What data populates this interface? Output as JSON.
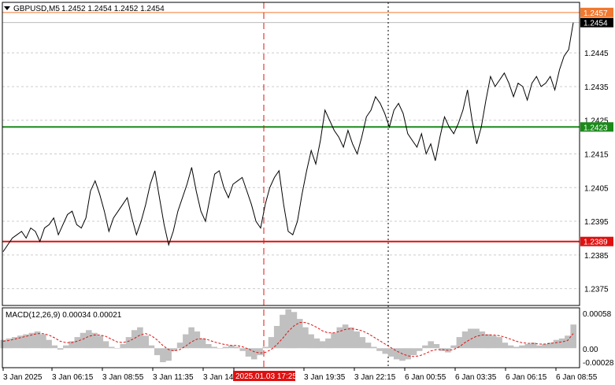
{
  "header": {
    "symbol": "GBPUSD,M5",
    "ohlc": "1.2452 1.2454 1.2452 1.2454"
  },
  "macd": {
    "label": "MACD(12,26,9) 0.00034 0.00021",
    "scale_labels": [
      "0.00058",
      "0.00",
      "-0.00028"
    ]
  },
  "price_levels": [
    {
      "label": "1.2457",
      "value": 1.2457,
      "color": "#f07830"
    },
    {
      "label": "1.2454",
      "value": 1.2454,
      "color": "#000000"
    },
    {
      "label": "1.2423",
      "value": 1.2423,
      "color": "#1a8a1a"
    },
    {
      "label": "1.2389",
      "value": 1.2389,
      "color": "#e01010"
    }
  ],
  "x_labels": [
    "3 Jan 2025",
    "3 Jan 06:15",
    "3 Jan 08:55",
    "3 Jan 11:35",
    "3 Jan 14:",
    "2025.01.03 17:25",
    "3 Jan 19:35",
    "3 Jan 22:15",
    "6 Jan 00:55",
    "6 Jan 03:35",
    "6 Jan 06:15",
    "6 Jan 08:55"
  ],
  "chart_data": {
    "type": "line",
    "title": "GBPUSD,M5",
    "ylim": [
      1.237,
      1.246
    ],
    "y_ticks": [
      1.2375,
      1.2385,
      1.2395,
      1.2405,
      1.2415,
      1.2425,
      1.2435,
      1.2445
    ],
    "y_tick_labels": [
      "1.2375",
      "1.2385",
      "1.2395",
      "1.2405",
      "1.2415",
      "1.2425",
      "1.2435",
      "1.2445"
    ],
    "grid": true,
    "horizontal_lines": [
      {
        "value": 1.2457,
        "color": "#f07830"
      },
      {
        "value": 1.2423,
        "color": "#1a8a1a"
      },
      {
        "value": 1.2389,
        "color": "#e01010"
      }
    ],
    "price_series": [
      1.2386,
      1.2388,
      1.239,
      1.2391,
      1.2392,
      1.239,
      1.2393,
      1.2392,
      1.2389,
      1.2393,
      1.2394,
      1.2396,
      1.2391,
      1.2394,
      1.2397,
      1.2398,
      1.2394,
      1.2393,
      1.2396,
      1.2404,
      1.2407,
      1.2403,
      1.2398,
      1.2392,
      1.2396,
      1.2398,
      1.24,
      1.2402,
      1.2396,
      1.2391,
      1.2395,
      1.24,
      1.2406,
      1.241,
      1.2402,
      1.2394,
      1.2388,
      1.2392,
      1.2398,
      1.2402,
      1.2406,
      1.2411,
      1.2404,
      1.2398,
      1.2395,
      1.2402,
      1.2409,
      1.241,
      1.2405,
      1.2402,
      1.2406,
      1.2407,
      1.2408,
      1.2404,
      1.24,
      1.2395,
      1.2393,
      1.24,
      1.2405,
      1.2408,
      1.241,
      1.24,
      1.2392,
      1.2391,
      1.2395,
      1.2403,
      1.241,
      1.2416,
      1.2412,
      1.2419,
      1.2428,
      1.2425,
      1.2422,
      1.242,
      1.2417,
      1.2422,
      1.2418,
      1.2415,
      1.242,
      1.2426,
      1.2428,
      1.2432,
      1.243,
      1.2427,
      1.2423,
      1.2428,
      1.243,
      1.2427,
      1.2421,
      1.2419,
      1.2417,
      1.2421,
      1.2415,
      1.2418,
      1.2413,
      1.242,
      1.2426,
      1.2423,
      1.2421,
      1.2424,
      1.2428,
      1.2434,
      1.2425,
      1.2418,
      1.2423,
      1.2431,
      1.2438,
      1.2435,
      1.2437,
      1.2439,
      1.2436,
      1.2432,
      1.2436,
      1.2435,
      1.2431,
      1.2436,
      1.2438,
      1.2435,
      1.2436,
      1.2438,
      1.2434,
      1.244,
      1.2444,
      1.2446,
      1.2454
    ],
    "macd_histogram": [
      0.00012,
      0.00014,
      0.00016,
      0.00018,
      0.0002,
      0.00022,
      0.00024,
      0.0002,
      0.00012,
      4e-05,
      -2e-05,
      4e-05,
      0.0001,
      0.00016,
      0.00022,
      0.00026,
      0.00022,
      0.00018,
      0.0001,
      2e-05,
      0.0,
      6e-05,
      0.00016,
      0.00026,
      0.0003,
      0.00018,
      4e-05,
      -0.0001,
      -0.0002,
      -0.00018,
      -4e-05,
      8e-05,
      0.0002,
      0.0003,
      0.00024,
      0.00014,
      6e-05,
      2e-05,
      0.0,
      2e-05,
      4e-05,
      2e-05,
      -4e-05,
      -0.00012,
      -0.00016,
      -0.0001,
      2e-05,
      0.00016,
      0.00032,
      0.00048,
      0.00056,
      0.00052,
      0.00042,
      0.0003,
      0.0002,
      0.00014,
      0.0001,
      0.00014,
      0.00022,
      0.0003,
      0.00034,
      0.0003,
      0.00024,
      0.00016,
      8e-05,
      2e-05,
      -4e-05,
      -8e-05,
      -0.00012,
      -0.00016,
      -0.00018,
      -0.00016,
      -0.0001,
      -4e-05,
      4e-05,
      0.0001,
      6e-05,
      -4e-05,
      -6e-05,
      4e-05,
      0.00016,
      0.00024,
      0.00028,
      0.00028,
      0.00024,
      0.0002,
      0.00018,
      0.00016,
      8e-05,
      4e-05,
      2e-05,
      4e-05,
      6e-05,
      8e-05,
      4e-05,
      6e-05,
      8e-05,
      0.00012,
      0.00014,
      0.00018,
      0.00034
    ],
    "macd_signal": [
      0.0001,
      0.00011,
      0.00013,
      0.00015,
      0.00017,
      0.00019,
      0.00021,
      0.00021,
      0.00019,
      0.00015,
      0.0001,
      8e-05,
      8e-05,
      0.0001,
      0.00013,
      0.00017,
      0.00019,
      0.00019,
      0.00017,
      0.00013,
      9e-05,
      8e-05,
      0.0001,
      0.00014,
      0.00019,
      0.00021,
      0.00018,
      0.00012,
      4e-05,
      -2e-05,
      -4e-05,
      -2e-05,
      3e-05,
      9e-05,
      0.00013,
      0.00014,
      0.00012,
      9e-05,
      7e-05,
      5e-05,
      4e-05,
      4e-05,
      2e-05,
      -1e-05,
      -5e-05,
      -7e-05,
      -6e-05,
      -2e-05,
      5e-05,
      0.00014,
      0.00024,
      0.00032,
      0.00037,
      0.00037,
      0.00034,
      0.0003,
      0.00025,
      0.00022,
      0.00022,
      0.00024,
      0.00027,
      0.00028,
      0.00027,
      0.00025,
      0.00021,
      0.00016,
      0.00011,
      6e-05,
      1e-05,
      -4e-05,
      -8e-05,
      -0.00011,
      -0.00012,
      -0.00011,
      -8e-05,
      -4e-05,
      -2e-05,
      -2e-05,
      -3e-05,
      -2e-05,
      2e-05,
      8e-05,
      0.00013,
      0.00017,
      0.00019,
      0.00019,
      0.00019,
      0.00018,
      0.00016,
      0.00013,
      0.0001,
      8e-05,
      7e-05,
      7e-05,
      6e-05,
      6e-05,
      7e-05,
      8e-05,
      9e-05,
      0.00011,
      0.00021
    ]
  }
}
